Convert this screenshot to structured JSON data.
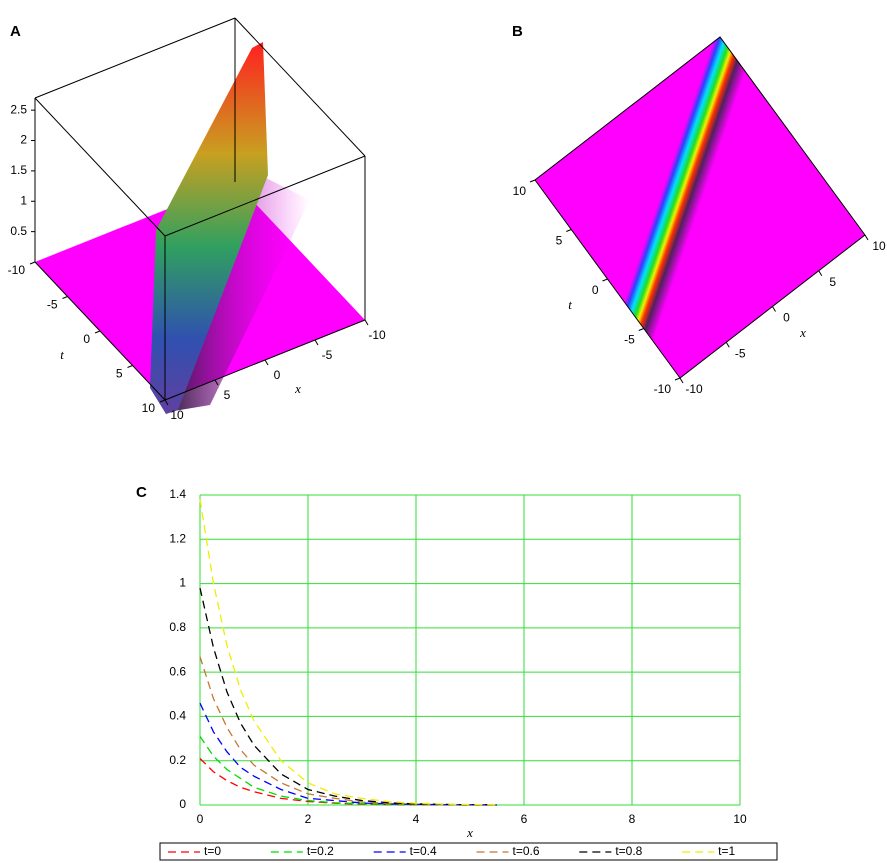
{
  "chart_data": [
    {
      "type": "surface3d",
      "label": "A",
      "xlabel": "x",
      "ylabel": "t",
      "xlim": [
        -10,
        10
      ],
      "ylim": [
        -10,
        10
      ],
      "zlim": [
        0,
        2.7
      ],
      "xticks": [
        -10,
        -5,
        0,
        5,
        10
      ],
      "yticks": [
        -10,
        -5,
        0,
        5,
        10
      ],
      "zticks": [
        0.5,
        1,
        1.5,
        2,
        2.5
      ],
      "color": "#ff00ff"
    },
    {
      "type": "density",
      "label": "B",
      "xlabel": "x",
      "ylabel": "t",
      "xlim": [
        -10,
        10
      ],
      "ylim": [
        -10,
        10
      ],
      "xticks": [
        -10,
        -5,
        0,
        5,
        10
      ],
      "yticks": [
        -10,
        -5,
        0,
        5,
        10
      ],
      "color": "#ff00ff"
    },
    {
      "type": "line",
      "label": "C",
      "xlabel": "x",
      "x": [
        0,
        0.25,
        0.5,
        0.75,
        1,
        1.5,
        2,
        2.5,
        3,
        3.5,
        4,
        4.5,
        5,
        5.5
      ],
      "series": [
        {
          "name": "t=0",
          "color": "#ff0000",
          "values": [
            0.21,
            0.15,
            0.11,
            0.08,
            0.06,
            0.03,
            0.016,
            0.008,
            0.004,
            0.002,
            0.001,
            0.001,
            0,
            0
          ]
        },
        {
          "name": "t=0.2",
          "color": "#00dd00",
          "values": [
            0.31,
            0.22,
            0.16,
            0.12,
            0.08,
            0.04,
            0.02,
            0.01,
            0.006,
            0.003,
            0.002,
            0.001,
            0,
            0
          ]
        },
        {
          "name": "t=0.4",
          "color": "#0000ff",
          "values": [
            0.46,
            0.33,
            0.24,
            0.17,
            0.13,
            0.07,
            0.03,
            0.02,
            0.009,
            0.005,
            0.003,
            0.001,
            0.001,
            0
          ]
        },
        {
          "name": "t=0.6",
          "color": "#c87533",
          "values": [
            0.67,
            0.48,
            0.35,
            0.25,
            0.18,
            0.1,
            0.05,
            0.03,
            0.013,
            0.007,
            0.004,
            0.002,
            0.001,
            0.001
          ]
        },
        {
          "name": "t=0.8",
          "color": "#000000",
          "values": [
            0.98,
            0.71,
            0.51,
            0.37,
            0.27,
            0.14,
            0.07,
            0.04,
            0.02,
            0.01,
            0.005,
            0.003,
            0.001,
            0.001
          ]
        },
        {
          "name": "t=1",
          "color": "#eeee00",
          "values": [
            1.38,
            1.0,
            0.72,
            0.52,
            0.38,
            0.2,
            0.1,
            0.05,
            0.03,
            0.015,
            0.008,
            0.004,
            0.002,
            0.001
          ]
        }
      ],
      "xlim": [
        0,
        10
      ],
      "ylim": [
        0,
        1.4
      ],
      "xticks": [
        0,
        2,
        4,
        6,
        8,
        10
      ],
      "yticks": [
        0,
        0.2,
        0.4,
        0.6,
        0.8,
        1,
        1.2,
        1.4
      ],
      "grid": true,
      "grid_color": "#33dd33",
      "legend": "bottom"
    }
  ]
}
